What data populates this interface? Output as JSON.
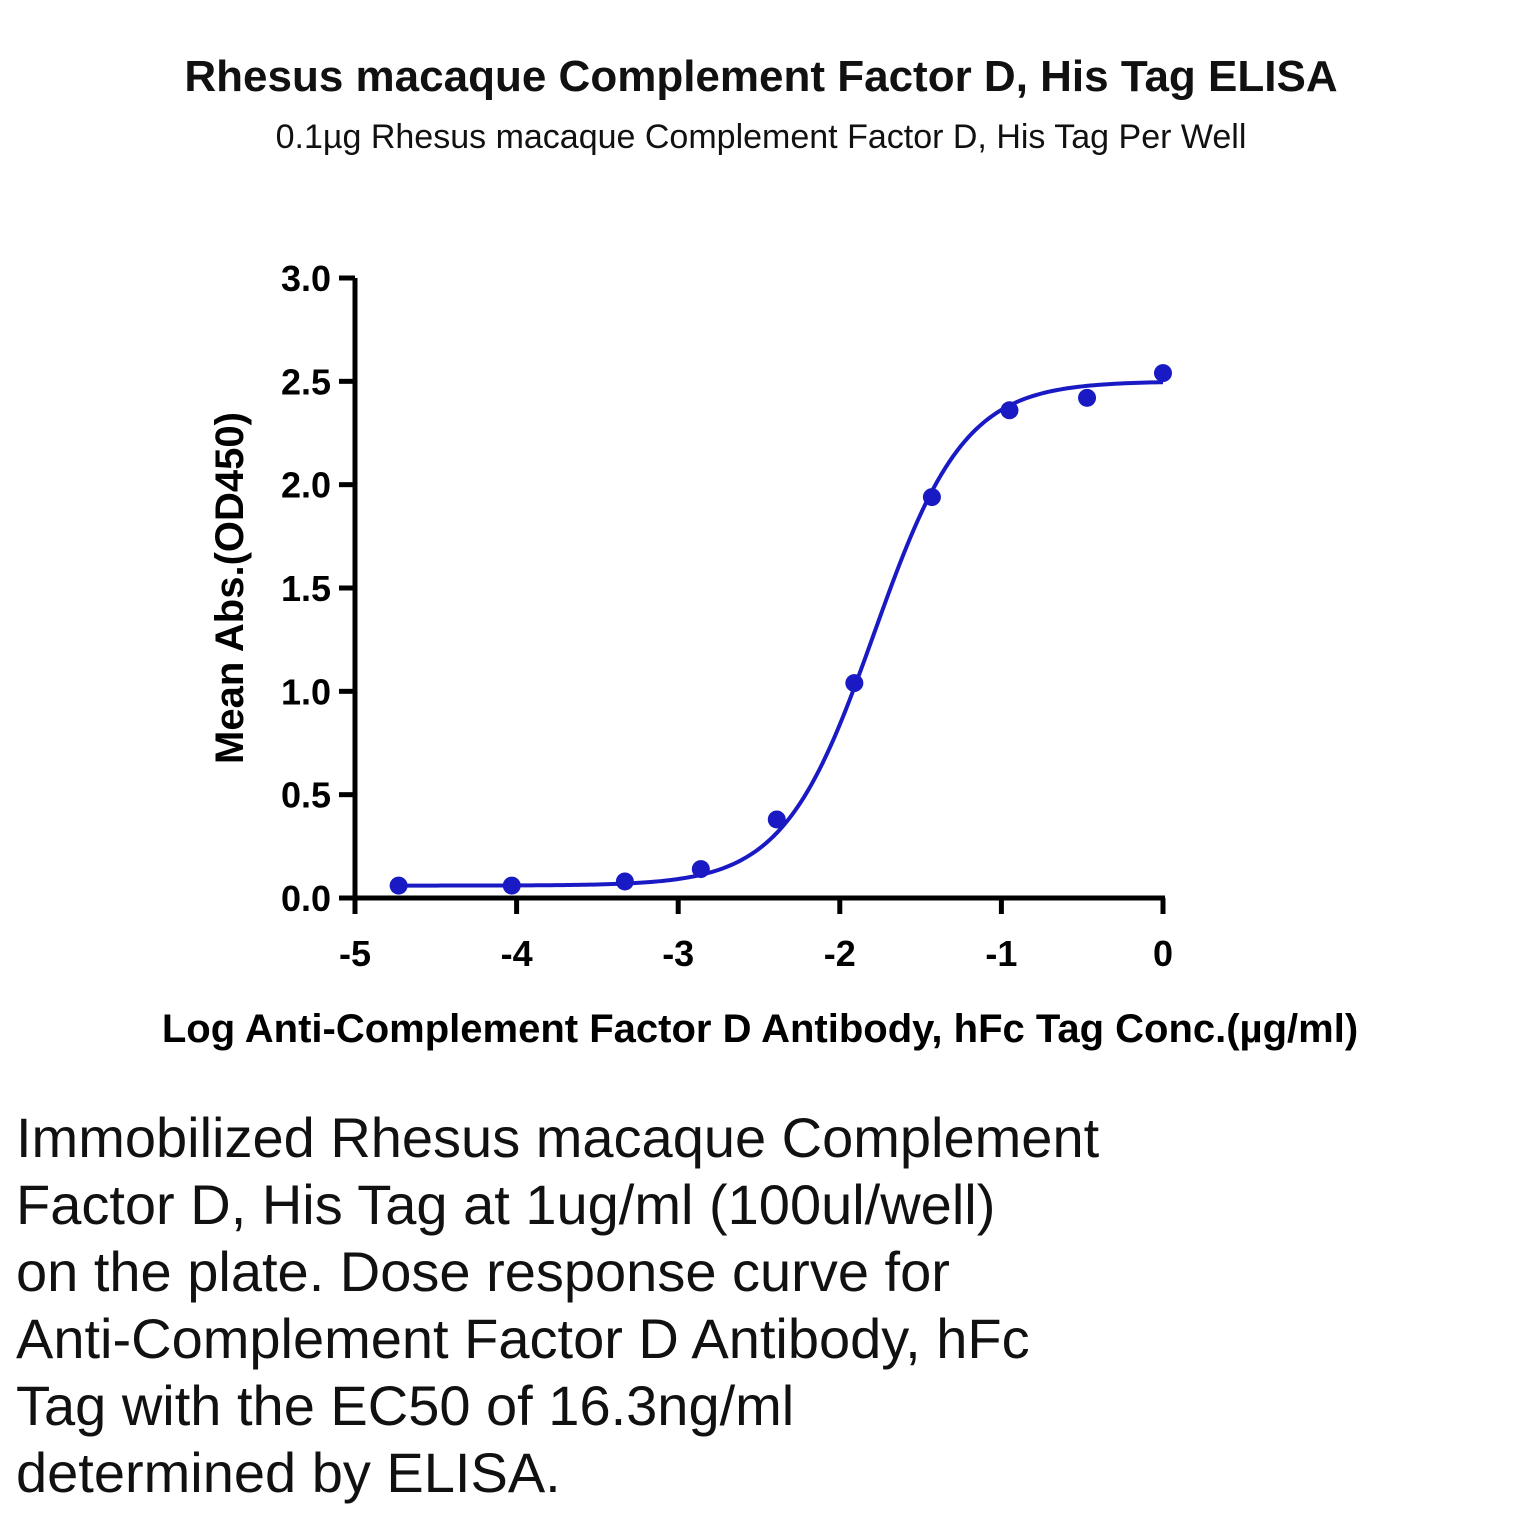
{
  "chart_data": {
    "type": "scatter",
    "title": "Rhesus macaque Complement Factor D, His Tag ELISA",
    "subtitle": "0.1µg Rhesus macaque Complement Factor D, His Tag Per Well",
    "xlabel": "Log Anti-Complement Factor D  Antibody, hFc Tag Conc.(µg/ml)",
    "ylabel": "Mean Abs.(OD450)",
    "xlim": [
      -5,
      0
    ],
    "ylim": [
      0,
      3.0
    ],
    "x_ticks": [
      "-5",
      "-4",
      "-3",
      "-2",
      "-1",
      "0"
    ],
    "y_ticks": [
      "0.0",
      "0.5",
      "1.0",
      "1.5",
      "2.0",
      "2.5",
      "3.0"
    ],
    "grid": false,
    "legend": "none",
    "series": [
      {
        "color": "#1a1ac4",
        "points": [
          {
            "x": -4.73,
            "y": 0.06
          },
          {
            "x": -4.03,
            "y": 0.06
          },
          {
            "x": -3.33,
            "y": 0.08
          },
          {
            "x": -2.86,
            "y": 0.14
          },
          {
            "x": -2.39,
            "y": 0.38
          },
          {
            "x": -1.91,
            "y": 1.04
          },
          {
            "x": -1.43,
            "y": 1.94
          },
          {
            "x": -0.95,
            "y": 2.36
          },
          {
            "x": -0.47,
            "y": 2.42
          },
          {
            "x": 0.0,
            "y": 2.54
          }
        ],
        "fit": {
          "model": "4PL",
          "bottom": 0.06,
          "top": 2.5,
          "logEC50": -1.788,
          "hill": 1.55
        }
      }
    ]
  },
  "caption": "Immobilized Rhesus macaque Complement\nFactor D, His Tag at 1ug/ml (100ul/well)\non the plate. Dose response curve for\nAnti-Complement Factor D Antibody, hFc\nTag with the EC50 of 16.3ng/ml\ndetermined by ELISA."
}
